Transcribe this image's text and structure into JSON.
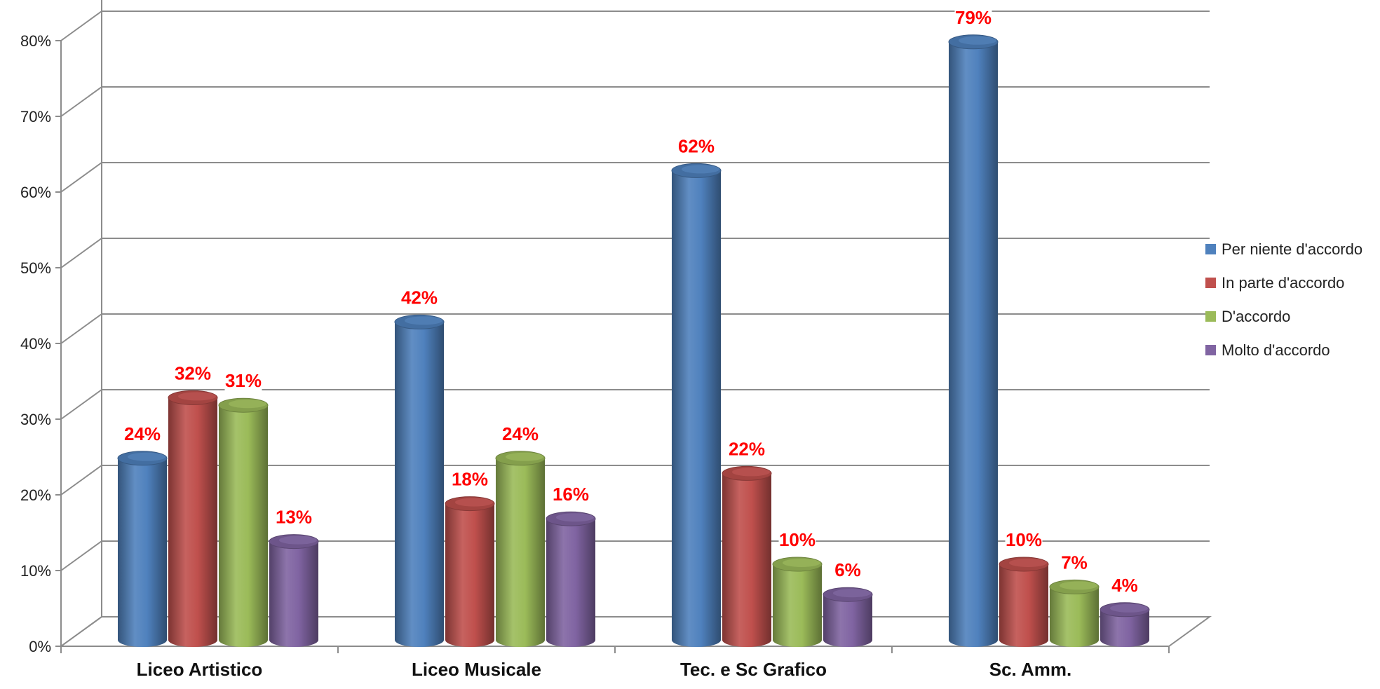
{
  "chart_data": {
    "type": "bar",
    "categories": [
      "Liceo Artistico",
      "Liceo Musicale",
      "Tec.  e Sc Grafico",
      "Sc. Amm."
    ],
    "series": [
      {
        "name": "Per niente d'accordo",
        "color": "#4f81bd",
        "values": [
          24,
          42,
          62,
          79
        ]
      },
      {
        "name": "In parte d'accordo",
        "color": "#c0504d",
        "values": [
          32,
          18,
          22,
          10
        ]
      },
      {
        "name": "D'accordo",
        "color": "#9bbb59",
        "values": [
          31,
          24,
          10,
          7
        ]
      },
      {
        "name": "Molto d'accordo",
        "color": "#8064a2",
        "values": [
          13,
          16,
          6,
          4
        ]
      }
    ],
    "data_labels": [
      [
        "24%",
        "42%",
        "62%",
        "79%"
      ],
      [
        "32%",
        "18%",
        "22%",
        "10%"
      ],
      [
        "31%",
        "24%",
        "10%",
        "7%"
      ],
      [
        "13%",
        "16%",
        "6%",
        "4%"
      ]
    ],
    "y_ticks": [
      "0%",
      "10%",
      "20%",
      "30%",
      "40%",
      "50%",
      "60%",
      "70%",
      "80%"
    ],
    "ylim": [
      0,
      80
    ],
    "grid": true,
    "legend_position": "right",
    "label_color": "#ff0000"
  }
}
